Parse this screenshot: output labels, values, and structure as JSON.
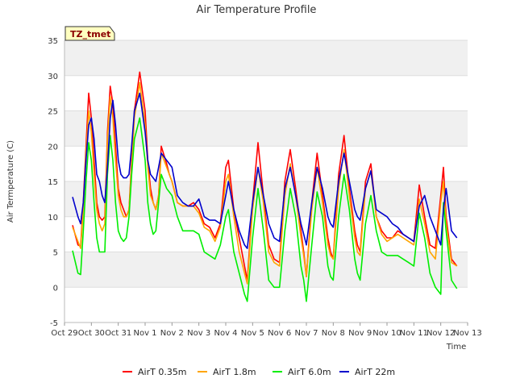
{
  "chart_data": {
    "type": "line",
    "title": "Air Temperature Profile",
    "xlabel": "Time",
    "ylabel": "Air Termperature (C)",
    "badge": "TZ_tmet",
    "x_tick_labels": [
      "Oct 29",
      "Oct 30",
      "Oct 31",
      "Nov 1",
      "Nov 2",
      "Nov 3",
      "Nov 4",
      "Nov 5",
      "Nov 6",
      "Nov 7",
      "Nov 8",
      "Nov 9",
      "Nov 10",
      "Nov 11",
      "Nov 12",
      "Nov 13"
    ],
    "xlim": [
      0,
      15
    ],
    "ylim": [
      -5,
      35
    ],
    "y_ticks": [
      -5,
      0,
      5,
      10,
      15,
      20,
      25,
      30,
      35
    ],
    "grid": true,
    "banded_background": true,
    "legend_position": "bottom",
    "colors": {
      "AirT 0.35m": "#ff0000",
      "AirT 1.8m": "#ffa500",
      "AirT 6.0m": "#00ee00",
      "AirT 22m": "#0000cc"
    },
    "series": [
      {
        "name": "AirT 0.35m",
        "x": [
          0.3,
          0.5,
          0.6,
          0.7,
          0.8,
          0.9,
          1.0,
          1.1,
          1.2,
          1.3,
          1.4,
          1.5,
          1.6,
          1.7,
          1.8,
          1.9,
          2.0,
          2.1,
          2.2,
          2.3,
          2.4,
          2.5,
          2.6,
          2.8,
          3.0,
          3.1,
          3.2,
          3.3,
          3.4,
          3.5,
          3.6,
          3.8,
          3.9,
          4.0,
          4.2,
          4.4,
          4.6,
          4.8,
          5.0,
          5.2,
          5.4,
          5.6,
          5.8,
          6.0,
          6.1,
          6.3,
          6.5,
          6.7,
          6.8,
          7.0,
          7.2,
          7.4,
          7.6,
          7.8,
          8.0,
          8.2,
          8.4,
          8.6,
          8.8,
          8.9,
          9.0,
          9.2,
          9.4,
          9.6,
          9.8,
          9.9,
          10.0,
          10.2,
          10.4,
          10.6,
          10.8,
          10.9,
          11.0,
          11.2,
          11.4,
          11.6,
          11.8,
          12.0,
          12.2,
          12.4,
          12.6,
          12.8,
          13.0,
          13.2,
          13.4,
          13.6,
          13.8,
          14.0,
          14.1,
          14.2,
          14.4,
          14.6
        ],
        "values": [
          8.8,
          6.0,
          5.8,
          12,
          20,
          27.5,
          24,
          18,
          12,
          10,
          9.5,
          10,
          22,
          28.5,
          26,
          20,
          14,
          12,
          11,
          10,
          11,
          18,
          25,
          30.5,
          25,
          18,
          14,
          12,
          11,
          13,
          20,
          17.5,
          16,
          15,
          12,
          11.5,
          11.5,
          12,
          11,
          9,
          8.5,
          7,
          9,
          17,
          18,
          11,
          7,
          3,
          1,
          12,
          20.5,
          13,
          6,
          4,
          3.5,
          15,
          19.5,
          14,
          8,
          5,
          1.5,
          12,
          19,
          13,
          7,
          5,
          4,
          16,
          21.5,
          14,
          8,
          6,
          5,
          15,
          17.5,
          10,
          8,
          7,
          7,
          8,
          7.5,
          7,
          6.5,
          14.5,
          10,
          6,
          5.5,
          13,
          17,
          10,
          4,
          3
        ]
      },
      {
        "name": "AirT 1.8m",
        "x": [
          0.3,
          0.5,
          0.6,
          0.7,
          0.8,
          0.9,
          1.0,
          1.1,
          1.2,
          1.3,
          1.4,
          1.5,
          1.6,
          1.7,
          1.8,
          1.9,
          2.0,
          2.1,
          2.2,
          2.3,
          2.4,
          2.5,
          2.6,
          2.8,
          3.0,
          3.1,
          3.2,
          3.3,
          3.4,
          3.5,
          3.6,
          3.8,
          3.9,
          4.0,
          4.2,
          4.4,
          4.6,
          4.8,
          5.0,
          5.2,
          5.4,
          5.6,
          5.8,
          6.0,
          6.1,
          6.3,
          6.5,
          6.7,
          6.8,
          7.0,
          7.2,
          7.4,
          7.6,
          7.8,
          8.0,
          8.2,
          8.4,
          8.6,
          8.8,
          8.9,
          9.0,
          9.2,
          9.4,
          9.6,
          9.8,
          9.9,
          10.0,
          10.2,
          10.4,
          10.6,
          10.8,
          10.9,
          11.0,
          11.2,
          11.4,
          11.6,
          11.8,
          12.0,
          12.2,
          12.4,
          12.6,
          12.8,
          13.0,
          13.2,
          13.4,
          13.6,
          13.8,
          14.0,
          14.1,
          14.2,
          14.4,
          14.6
        ],
        "values": [
          8.5,
          6.5,
          5.5,
          11,
          19,
          25,
          22,
          16,
          11,
          9,
          8,
          9,
          21,
          27,
          24,
          18,
          13,
          11,
          10,
          10,
          11,
          17,
          24,
          29,
          23,
          17,
          13,
          12,
          11,
          13,
          19,
          17,
          16,
          15,
          12,
          11.5,
          11.5,
          11.5,
          10.5,
          8.5,
          8,
          6.5,
          8.5,
          15,
          16,
          10,
          5,
          2,
          0.5,
          11,
          17,
          12,
          5,
          3.5,
          3,
          13,
          17.5,
          13,
          7,
          4.5,
          1.5,
          11,
          17,
          12,
          6,
          4.5,
          4,
          14,
          19.5,
          13,
          7,
          5,
          4.5,
          14,
          16.5,
          10,
          7.5,
          6.5,
          7,
          7.5,
          7,
          6.5,
          6,
          12.5,
          9,
          5,
          4,
          12,
          15,
          9,
          3.5,
          3
        ]
      },
      {
        "name": "AirT 6.0m",
        "x": [
          0.3,
          0.5,
          0.6,
          0.7,
          0.8,
          0.9,
          1.0,
          1.1,
          1.2,
          1.3,
          1.4,
          1.5,
          1.6,
          1.7,
          1.8,
          1.9,
          2.0,
          2.1,
          2.2,
          2.3,
          2.4,
          2.5,
          2.6,
          2.8,
          3.0,
          3.1,
          3.2,
          3.3,
          3.4,
          3.5,
          3.6,
          3.8,
          3.9,
          4.0,
          4.2,
          4.4,
          4.6,
          4.8,
          5.0,
          5.2,
          5.4,
          5.6,
          5.8,
          6.0,
          6.1,
          6.3,
          6.5,
          6.7,
          6.8,
          7.0,
          7.2,
          7.4,
          7.6,
          7.8,
          8.0,
          8.2,
          8.4,
          8.6,
          8.8,
          8.9,
          9.0,
          9.2,
          9.4,
          9.6,
          9.8,
          9.9,
          10.0,
          10.2,
          10.4,
          10.6,
          10.8,
          10.9,
          11.0,
          11.2,
          11.4,
          11.6,
          11.8,
          12.0,
          12.2,
          12.4,
          12.6,
          12.8,
          13.0,
          13.2,
          13.4,
          13.6,
          13.8,
          14.0,
          14.1,
          14.2,
          14.4,
          14.6
        ],
        "values": [
          5.2,
          2,
          1.8,
          8,
          15,
          20.5,
          18,
          12,
          7,
          5,
          5,
          5,
          16,
          21.5,
          18,
          12,
          8,
          7,
          6.5,
          7,
          10,
          16,
          21,
          24,
          18,
          12,
          9,
          7.5,
          8,
          12,
          16,
          14,
          13.5,
          13,
          10,
          8,
          8,
          8,
          7.5,
          5,
          4.5,
          4,
          6,
          10,
          11,
          5,
          2,
          -1,
          -2,
          7,
          14,
          8,
          1,
          0,
          0,
          8,
          14,
          10,
          3,
          1,
          -2,
          6,
          13.5,
          10,
          3,
          1.5,
          1,
          10,
          16,
          11,
          4,
          2,
          1,
          9,
          13,
          8,
          5,
          4.5,
          4.5,
          4.5,
          4,
          3.5,
          3,
          10.5,
          7,
          2,
          0,
          -1,
          12,
          8,
          1,
          -0.2
        ]
      },
      {
        "name": "AirT 22m",
        "x": [
          0.3,
          0.5,
          0.6,
          0.7,
          0.8,
          0.9,
          1.0,
          1.1,
          1.2,
          1.3,
          1.4,
          1.5,
          1.6,
          1.7,
          1.8,
          1.9,
          2.0,
          2.1,
          2.2,
          2.3,
          2.4,
          2.5,
          2.6,
          2.8,
          3.0,
          3.1,
          3.2,
          3.3,
          3.4,
          3.5,
          3.6,
          3.8,
          3.9,
          4.0,
          4.2,
          4.4,
          4.6,
          4.8,
          5.0,
          5.2,
          5.4,
          5.6,
          5.8,
          6.0,
          6.1,
          6.3,
          6.5,
          6.7,
          6.8,
          7.0,
          7.2,
          7.4,
          7.6,
          7.8,
          8.0,
          8.2,
          8.4,
          8.6,
          8.8,
          8.9,
          9.0,
          9.2,
          9.4,
          9.6,
          9.8,
          9.9,
          10.0,
          10.2,
          10.4,
          10.6,
          10.8,
          10.9,
          11.0,
          11.2,
          11.4,
          11.6,
          11.8,
          12.0,
          12.2,
          12.4,
          12.6,
          12.8,
          13.0,
          13.2,
          13.4,
          13.6,
          13.8,
          14.0,
          14.1,
          14.2,
          14.4,
          14.6
        ],
        "values": [
          12.8,
          10,
          9,
          12,
          18,
          23,
          24,
          21,
          16,
          15,
          13,
          12,
          17,
          24,
          26.5,
          23,
          18,
          16,
          15.5,
          15.5,
          16,
          20,
          25,
          27.5,
          22,
          18,
          16,
          15.5,
          15,
          17,
          19,
          18,
          17.5,
          17,
          13,
          12,
          11.5,
          11.5,
          12.5,
          10,
          9.5,
          9.5,
          9,
          13,
          15,
          11,
          8,
          6,
          5.5,
          12,
          17,
          13,
          9,
          7,
          6.5,
          14,
          17,
          13,
          9,
          7.5,
          6,
          12,
          17,
          14,
          10,
          9,
          8.5,
          15,
          19,
          15,
          11,
          10,
          9.5,
          14,
          16.5,
          11,
          10.5,
          10,
          9,
          8.5,
          7.5,
          7,
          6.5,
          11.5,
          13,
          10,
          8,
          6,
          11,
          14,
          8,
          7
        ]
      }
    ]
  }
}
